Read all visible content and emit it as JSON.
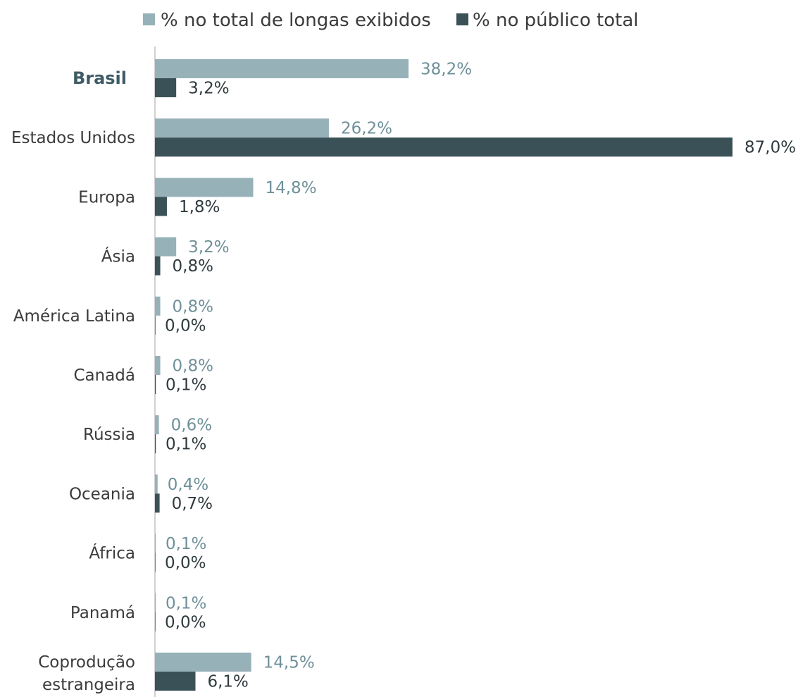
{
  "chart_data": {
    "type": "bar",
    "orientation": "horizontal",
    "categories": [
      "Brasil",
      "Estados Unidos",
      "Europa",
      "Ásia",
      "América Latina",
      "Canadá",
      "Rússia",
      "Oceania",
      "África",
      "Panamá",
      "Coprodução estrangeira"
    ],
    "category_lines": [
      [
        "Brasil"
      ],
      [
        "Estados Unidos"
      ],
      [
        "Europa"
      ],
      [
        "Ásia"
      ],
      [
        "América Latina"
      ],
      [
        "Canadá"
      ],
      [
        "Rússia"
      ],
      [
        "Oceania"
      ],
      [
        "África"
      ],
      [
        "Panamá"
      ],
      [
        "Coprodução",
        "estrangeira"
      ]
    ],
    "highlighted_category": "Brasil",
    "series": [
      {
        "name": "% no total de longas exibidos",
        "color": "#97b1b8",
        "label_color": "#6f9099",
        "values": [
          38.2,
          26.2,
          14.8,
          3.2,
          0.8,
          0.8,
          0.6,
          0.4,
          0.1,
          0.1,
          14.5
        ],
        "labels": [
          "38,2%",
          "26,2%",
          "14,8%",
          "3,2%",
          "0,8%",
          "0,8%",
          "0,6%",
          "0,4%",
          "0,1%",
          "0,1%",
          "14,5%"
        ]
      },
      {
        "name": "% no público total",
        "color": "#3b5158",
        "label_color": "#2f3a3e",
        "values": [
          3.2,
          87.0,
          1.8,
          0.8,
          0.0,
          0.1,
          0.1,
          0.7,
          0.0,
          0.0,
          6.1
        ],
        "labels": [
          "3,2%",
          "87,0%",
          "1,8%",
          "0,8%",
          "0,0%",
          "0,1%",
          "0,1%",
          "0,7%",
          "0,0%",
          "0,0%",
          "6,1%"
        ]
      }
    ],
    "xlim": [
      0,
      87
    ],
    "legend_position": "top",
    "grid": false,
    "axis_line_color": "#d0d0d0",
    "title": "",
    "xlabel": "",
    "ylabel": ""
  }
}
